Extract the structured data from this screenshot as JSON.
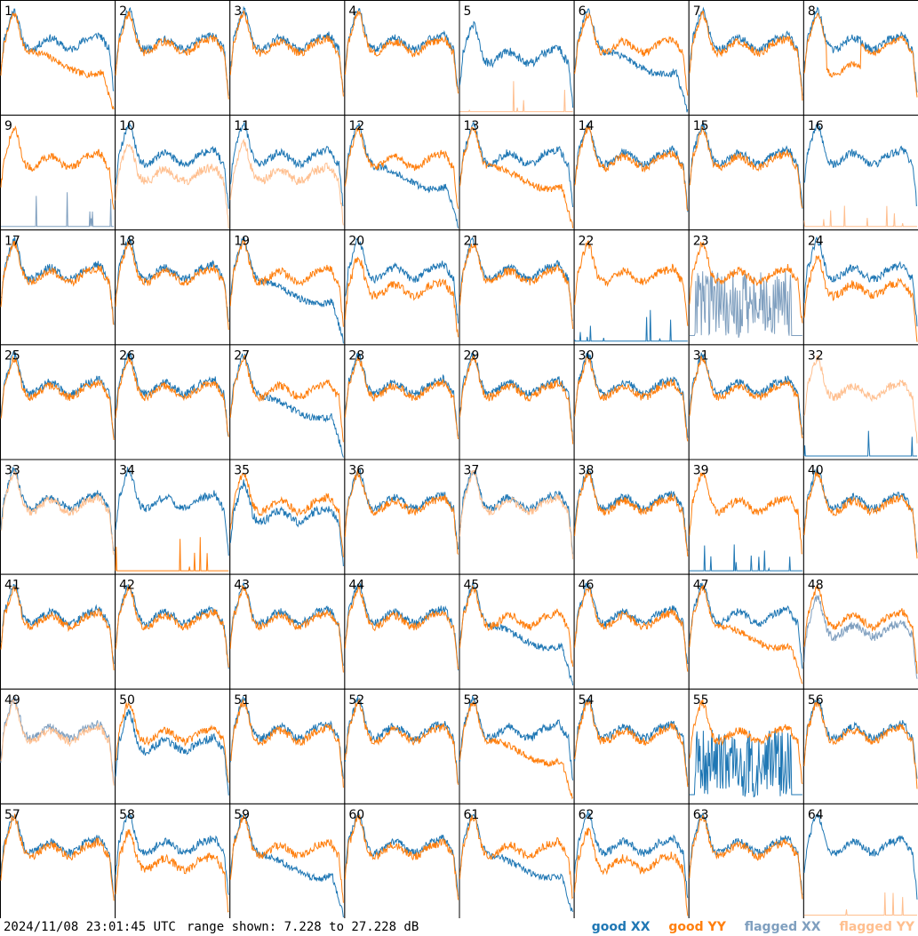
{
  "footer": {
    "timestamp": "2024/11/08 23:01:45 UTC",
    "range_label": "range shown: 7.228 to 27.228 dB"
  },
  "legend": {
    "good_xx": "good XX",
    "good_yy": "good YY",
    "flagged_xx": "flagged XX",
    "flagged_yy": "flagged YY"
  },
  "colors": {
    "good_xx": "#1f77b4",
    "good_yy": "#ff7f0e",
    "flagged_xx": "#7f9fbf",
    "flagged_yy": "#ffbf8f",
    "grid": "#000000"
  },
  "chart_data": {
    "type": "line",
    "grid": {
      "rows": 8,
      "cols": 8
    },
    "ylim": [
      7.228,
      27.228
    ],
    "yunit": "dB",
    "panel_labels": [
      "1",
      "2",
      "3",
      "4",
      "5",
      "6",
      "7",
      "8",
      "9",
      "10",
      "11",
      "12",
      "13",
      "14",
      "15",
      "16",
      "17",
      "18",
      "19",
      "20",
      "21",
      "22",
      "23",
      "24",
      "25",
      "26",
      "27",
      "28",
      "29",
      "30",
      "31",
      "32",
      "33",
      "34",
      "35",
      "36",
      "37",
      "38",
      "39",
      "40",
      "41",
      "42",
      "43",
      "44",
      "45",
      "46",
      "47",
      "48",
      "49",
      "50",
      "51",
      "52",
      "53",
      "54",
      "55",
      "56",
      "57",
      "58",
      "59",
      "60",
      "61",
      "62",
      "63",
      "64"
    ],
    "panels": {
      "1": {
        "xx": "normal",
        "yy": "drop",
        "yyFlag": false
      },
      "2": {
        "xx": "normal",
        "yy": "normal"
      },
      "3": {
        "xx": "normal",
        "yy": "normal"
      },
      "4": {
        "xx": "normal",
        "yy": "normal"
      },
      "5": {
        "xx": "low",
        "yy": "spikes",
        "yyFlag": true
      },
      "6": {
        "xx": "drop",
        "yy": "normal"
      },
      "7": {
        "xx": "normal",
        "yy": "normal"
      },
      "8": {
        "xx": "normal",
        "yy": "dip"
      },
      "9": {
        "xx": "spikes",
        "xxFlag": true,
        "yy": "normal"
      },
      "10": {
        "xx": "normal",
        "yy": "low",
        "yyFlag": true
      },
      "11": {
        "xx": "normal",
        "yy": "low",
        "yyFlag": true
      },
      "12": {
        "xx": "drop",
        "yy": "normal"
      },
      "13": {
        "xx": "normal",
        "yy": "drop"
      },
      "14": {
        "xx": "normal",
        "yy": "normal"
      },
      "15": {
        "xx": "normal",
        "yy": "normal"
      },
      "16": {
        "xx": "normal",
        "yy": "spikes",
        "yyFlag": true
      },
      "17": {
        "xx": "normal",
        "yy": "normal"
      },
      "18": {
        "xx": "normal",
        "yy": "normal"
      },
      "19": {
        "xx": "drop",
        "yy": "normal"
      },
      "20": {
        "xx": "normal",
        "yy": "low"
      },
      "21": {
        "xx": "normal",
        "yy": "normal"
      },
      "22": {
        "xx": "spikes",
        "yy": "normal"
      },
      "23": {
        "xx": "noise",
        "xxFlag": true,
        "yy": "normal"
      },
      "24": {
        "xx": "normal",
        "yy": "low"
      },
      "25": {
        "xx": "normal",
        "yy": "normal"
      },
      "26": {
        "xx": "normal",
        "yy": "normal"
      },
      "27": {
        "xx": "drop",
        "yy": "normal"
      },
      "28": {
        "xx": "normal",
        "yy": "normal"
      },
      "29": {
        "xx": "normal",
        "yy": "normal"
      },
      "30": {
        "xx": "normal",
        "yy": "normal"
      },
      "31": {
        "xx": "normal",
        "yy": "normal"
      },
      "32": {
        "xx": "spikes",
        "yy": "normal",
        "yyFlag": true
      },
      "33": {
        "xx": "normal",
        "yy": "normal",
        "yyFlag": true
      },
      "34": {
        "xx": "normal",
        "yy": "spikes"
      },
      "35": {
        "xx": "low",
        "yy": "normal"
      },
      "36": {
        "xx": "normal",
        "yy": "normal"
      },
      "37": {
        "xx": "normal",
        "yy": "normal",
        "yyFlag": true
      },
      "38": {
        "xx": "normal",
        "yy": "normal"
      },
      "39": {
        "xx": "spikes",
        "yy": "normal"
      },
      "40": {
        "xx": "normal",
        "yy": "normal"
      },
      "41": {
        "xx": "normal",
        "yy": "normal"
      },
      "42": {
        "xx": "normal",
        "yy": "normal"
      },
      "43": {
        "xx": "normal",
        "yy": "normal"
      },
      "44": {
        "xx": "normal",
        "yy": "normal"
      },
      "45": {
        "xx": "drop",
        "yy": "normal"
      },
      "46": {
        "xx": "normal",
        "yy": "normal"
      },
      "47": {
        "xx": "normal",
        "yy": "drop"
      },
      "48": {
        "xx": "low",
        "xxFlag": true,
        "yy": "normal"
      },
      "49": {
        "xx": "normal",
        "xxFlag": true,
        "yy": "normal",
        "yyFlag": true
      },
      "50": {
        "xx": "low",
        "yy": "normal"
      },
      "51": {
        "xx": "normal",
        "yy": "normal"
      },
      "52": {
        "xx": "normal",
        "yy": "normal"
      },
      "53": {
        "xx": "normal",
        "yy": "drop"
      },
      "54": {
        "xx": "normal",
        "yy": "normal"
      },
      "55": {
        "xx": "noise",
        "yy": "normal"
      },
      "56": {
        "xx": "normal",
        "yy": "normal"
      },
      "57": {
        "xx": "normal",
        "yy": "normal"
      },
      "58": {
        "xx": "normal",
        "yy": "low"
      },
      "59": {
        "xx": "drop",
        "yy": "normal"
      },
      "60": {
        "xx": "normal",
        "yy": "normal"
      },
      "61": {
        "xx": "drop",
        "yy": "normal"
      },
      "62": {
        "xx": "normal",
        "yy": "low"
      },
      "63": {
        "xx": "normal",
        "yy": "normal"
      },
      "64": {
        "xx": "normal",
        "yy": "spikes",
        "yyFlag": true
      }
    }
  }
}
